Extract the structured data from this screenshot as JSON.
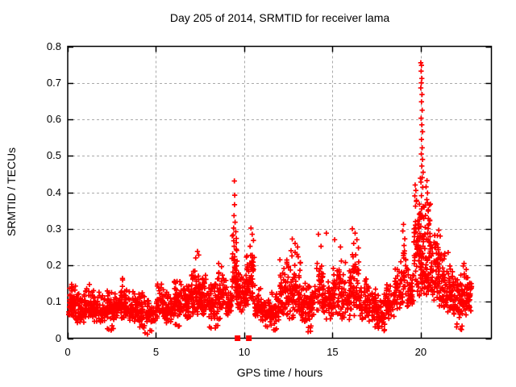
{
  "window": {
    "background": "#ffffff"
  },
  "chart_data": {
    "type": "scatter",
    "title": "Day 205 of 2014, SRMTID for receiver lama",
    "xlabel": "GPS time / hours",
    "ylabel": "SRMTID / TECUs",
    "xlim": [
      0,
      24
    ],
    "ylim": [
      0,
      0.8
    ],
    "xtick_labels": [
      "0",
      "5",
      "10",
      "15",
      "20"
    ],
    "ytick_labels": [
      "0",
      "0.1",
      "0.2",
      "0.3",
      "0.4",
      "0.5",
      "0.6",
      "0.7",
      "0.8"
    ],
    "grid": true,
    "grid_style": "dashed",
    "legend": "none",
    "colors": {
      "marker": "#ff0000",
      "axis": "#000000",
      "grid": "#a9a9a9",
      "text": "#000000",
      "background": "#ffffff"
    },
    "marker": {
      "shape": "plus",
      "size": 7
    },
    "zero_marker": {
      "shape": "filled-square",
      "size": 7
    },
    "zero_points": [
      9.62,
      10.26
    ],
    "density_bins": [
      [
        0.05,
        0.5,
        0.05,
        0.17,
        60
      ],
      [
        0.5,
        1.0,
        0.04,
        0.14,
        55
      ],
      [
        1.0,
        1.5,
        0.05,
        0.16,
        55
      ],
      [
        1.5,
        2.0,
        0.04,
        0.13,
        50
      ],
      [
        2.0,
        2.5,
        0.04,
        0.14,
        50
      ],
      [
        2.5,
        3.0,
        0.05,
        0.13,
        50
      ],
      [
        3.0,
        3.5,
        0.05,
        0.17,
        55
      ],
      [
        3.5,
        4.0,
        0.04,
        0.13,
        50
      ],
      [
        4.0,
        4.5,
        0.03,
        0.14,
        50
      ],
      [
        4.5,
        5.0,
        0.04,
        0.12,
        45
      ],
      [
        5.0,
        5.5,
        0.05,
        0.16,
        55
      ],
      [
        5.5,
        6.0,
        0.04,
        0.14,
        50
      ],
      [
        6.0,
        6.5,
        0.05,
        0.18,
        55
      ],
      [
        6.5,
        7.0,
        0.05,
        0.16,
        55
      ],
      [
        7.0,
        7.5,
        0.06,
        0.21,
        60
      ],
      [
        7.5,
        8.0,
        0.06,
        0.19,
        55
      ],
      [
        8.0,
        8.5,
        0.05,
        0.18,
        55
      ],
      [
        8.5,
        9.0,
        0.05,
        0.2,
        55
      ],
      [
        9.0,
        9.3,
        0.06,
        0.15,
        30
      ],
      [
        9.3,
        9.6,
        0.1,
        0.3,
        45
      ],
      [
        9.6,
        10.0,
        0.07,
        0.2,
        45
      ],
      [
        10.0,
        10.3,
        0.08,
        0.24,
        35
      ],
      [
        10.3,
        10.6,
        0.08,
        0.28,
        40
      ],
      [
        10.6,
        11.0,
        0.05,
        0.14,
        40
      ],
      [
        11.0,
        11.5,
        0.04,
        0.12,
        45
      ],
      [
        11.5,
        12.0,
        0.04,
        0.14,
        45
      ],
      [
        12.0,
        12.4,
        0.05,
        0.2,
        45
      ],
      [
        12.4,
        12.8,
        0.05,
        0.24,
        50
      ],
      [
        12.8,
        13.2,
        0.06,
        0.26,
        50
      ],
      [
        13.2,
        13.6,
        0.04,
        0.17,
        45
      ],
      [
        13.6,
        14.0,
        0.05,
        0.16,
        45
      ],
      [
        14.0,
        14.5,
        0.06,
        0.22,
        50
      ],
      [
        14.5,
        15.0,
        0.05,
        0.19,
        50
      ],
      [
        15.0,
        15.5,
        0.06,
        0.21,
        50
      ],
      [
        15.5,
        16.0,
        0.05,
        0.22,
        50
      ],
      [
        16.0,
        16.5,
        0.06,
        0.26,
        55
      ],
      [
        16.5,
        17.0,
        0.05,
        0.18,
        50
      ],
      [
        17.0,
        17.5,
        0.04,
        0.15,
        45
      ],
      [
        17.5,
        18.0,
        0.03,
        0.14,
        45
      ],
      [
        18.0,
        18.5,
        0.05,
        0.16,
        48
      ],
      [
        18.5,
        19.0,
        0.07,
        0.22,
        50
      ],
      [
        19.0,
        19.2,
        0.1,
        0.3,
        25
      ],
      [
        19.2,
        19.6,
        0.08,
        0.22,
        40
      ],
      [
        19.6,
        19.9,
        0.12,
        0.42,
        45
      ],
      [
        19.9,
        20.2,
        0.15,
        0.45,
        50
      ],
      [
        19.9,
        20.6,
        0.1,
        0.25,
        30
      ],
      [
        20.2,
        20.6,
        0.12,
        0.42,
        55
      ],
      [
        20.6,
        21.0,
        0.1,
        0.32,
        50
      ],
      [
        21.0,
        21.4,
        0.08,
        0.28,
        48
      ],
      [
        21.4,
        21.8,
        0.07,
        0.22,
        45
      ],
      [
        21.8,
        22.2,
        0.05,
        0.18,
        45
      ],
      [
        22.2,
        22.6,
        0.06,
        0.2,
        45
      ],
      [
        22.6,
        22.9,
        0.07,
        0.17,
        35
      ],
      [
        2.2,
        2.6,
        0.015,
        0.04,
        6
      ],
      [
        4.2,
        4.8,
        0.01,
        0.04,
        6
      ],
      [
        6.0,
        6.4,
        0.02,
        0.045,
        4
      ],
      [
        8.0,
        8.6,
        0.02,
        0.045,
        5
      ],
      [
        11.2,
        12.0,
        0.02,
        0.045,
        6
      ],
      [
        13.3,
        13.8,
        0.015,
        0.04,
        5
      ],
      [
        17.3,
        18.0,
        0.02,
        0.045,
        6
      ],
      [
        21.9,
        22.4,
        0.02,
        0.045,
        5
      ]
    ],
    "outliers": [
      [
        9.44,
        0.431
      ],
      [
        9.46,
        0.392
      ],
      [
        9.45,
        0.366
      ],
      [
        9.42,
        0.336
      ],
      [
        9.48,
        0.318
      ],
      [
        9.4,
        0.302
      ],
      [
        9.52,
        0.292
      ],
      [
        9.37,
        0.283
      ],
      [
        9.55,
        0.262
      ],
      [
        9.43,
        0.252
      ],
      [
        7.35,
        0.238
      ],
      [
        7.42,
        0.228
      ],
      [
        7.25,
        0.22
      ],
      [
        8.55,
        0.205
      ],
      [
        10.38,
        0.302
      ],
      [
        10.45,
        0.285
      ],
      [
        10.52,
        0.268
      ],
      [
        10.33,
        0.252
      ],
      [
        12.02,
        0.215
      ],
      [
        12.72,
        0.272
      ],
      [
        12.88,
        0.26
      ],
      [
        13.02,
        0.25
      ],
      [
        12.65,
        0.24
      ],
      [
        14.2,
        0.285
      ],
      [
        14.35,
        0.252
      ],
      [
        14.65,
        0.288
      ],
      [
        15.12,
        0.27
      ],
      [
        15.45,
        0.25
      ],
      [
        16.12,
        0.3
      ],
      [
        16.28,
        0.288
      ],
      [
        16.38,
        0.27
      ],
      [
        16.2,
        0.26
      ],
      [
        19.02,
        0.312
      ],
      [
        18.98,
        0.294
      ],
      [
        21.02,
        0.296
      ],
      [
        21.1,
        0.28
      ],
      [
        21.55,
        0.235
      ],
      [
        22.45,
        0.205
      ],
      [
        20.0,
        0.755
      ],
      [
        20.04,
        0.748
      ],
      [
        20.02,
        0.732
      ],
      [
        20.06,
        0.712
      ],
      [
        20.03,
        0.7
      ],
      [
        20.0,
        0.686
      ],
      [
        20.07,
        0.668
      ],
      [
        20.04,
        0.648
      ],
      [
        20.08,
        0.625
      ],
      [
        20.02,
        0.603
      ],
      [
        20.06,
        0.585
      ],
      [
        20.1,
        0.566
      ],
      [
        20.04,
        0.545
      ],
      [
        20.08,
        0.522
      ],
      [
        20.03,
        0.505
      ],
      [
        20.1,
        0.49
      ],
      [
        20.06,
        0.472
      ],
      [
        20.13,
        0.455
      ],
      [
        20.08,
        0.44
      ],
      [
        20.01,
        0.428
      ],
      [
        19.68,
        0.42
      ],
      [
        19.72,
        0.405
      ],
      [
        19.66,
        0.39
      ],
      [
        19.75,
        0.375
      ],
      [
        19.7,
        0.362
      ],
      [
        20.3,
        0.415
      ],
      [
        20.38,
        0.398
      ],
      [
        20.34,
        0.38
      ],
      [
        20.26,
        0.365
      ],
      [
        20.42,
        0.35
      ],
      [
        20.35,
        0.432
      ]
    ]
  }
}
